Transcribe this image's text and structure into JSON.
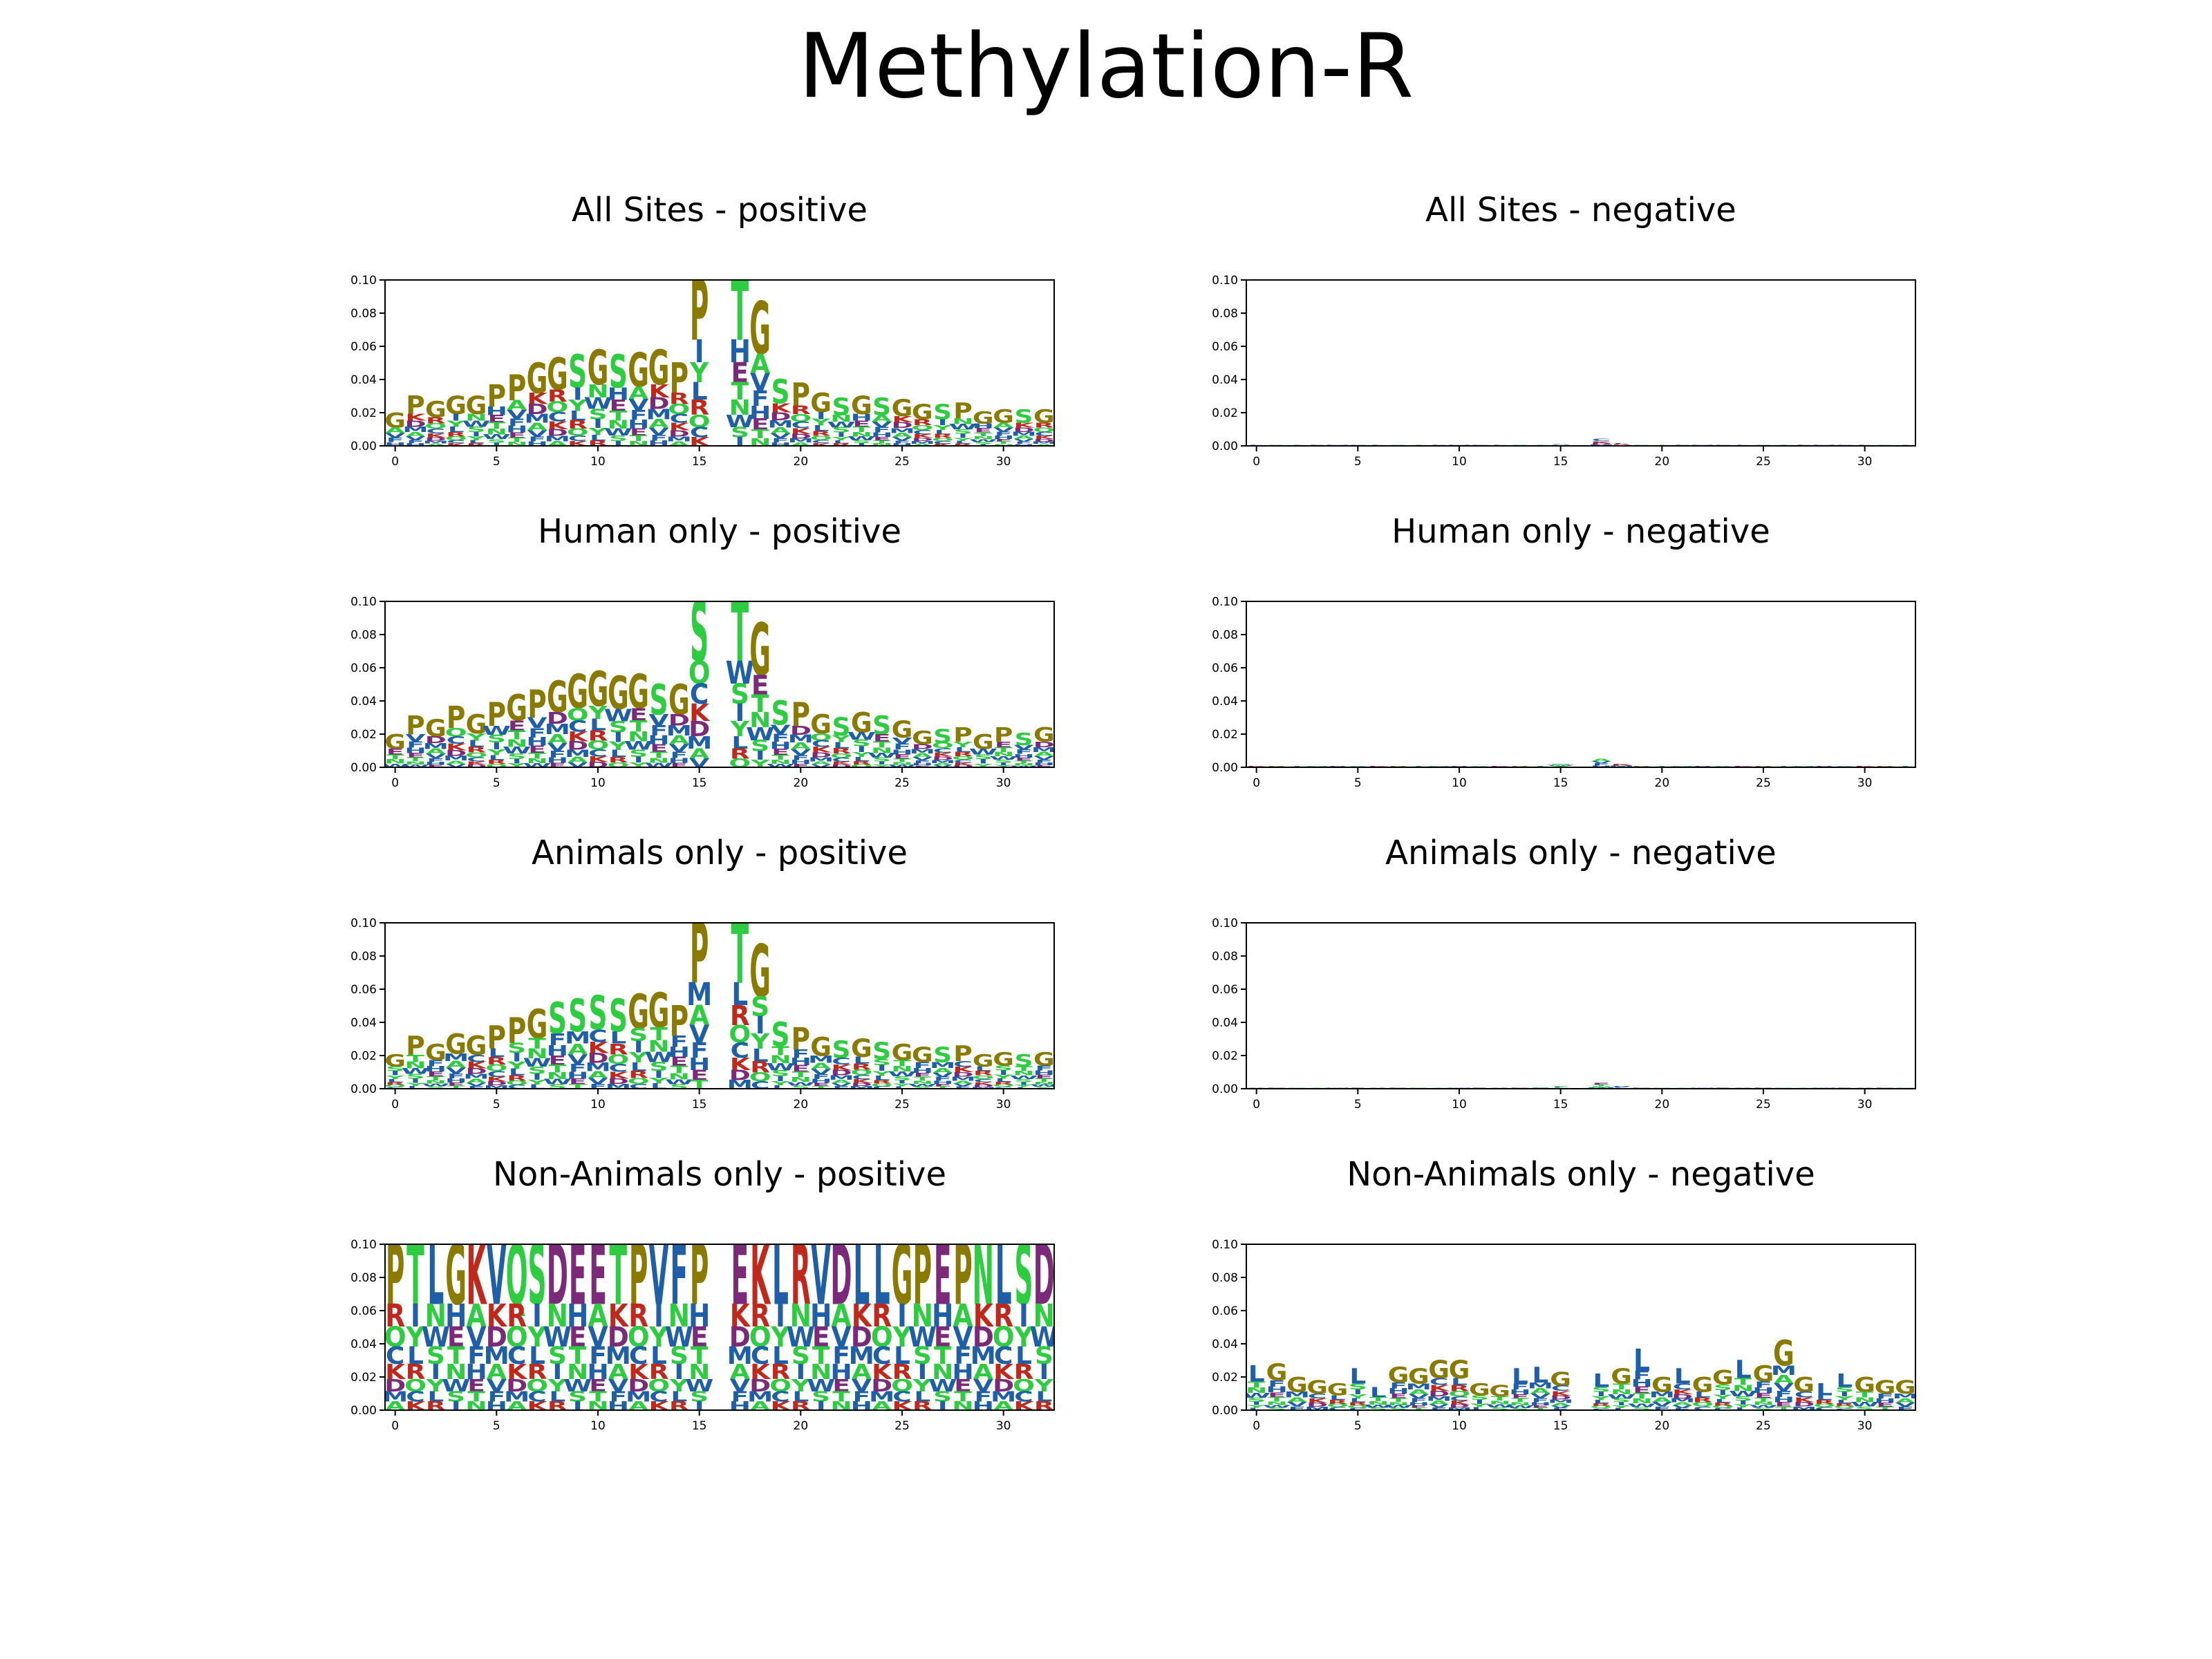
{
  "suptitle": "Methylation-R",
  "colors": {
    "A": "#2ecc40",
    "C": "#1f5fa8",
    "D": "#7a2a78",
    "E": "#7a2a78",
    "F": "#1f5fa8",
    "G": "#8a7a00",
    "H": "#1f5fa8",
    "I": "#1f5fa8",
    "K": "#c0281c",
    "L": "#1f5fa8",
    "M": "#1f5fa8",
    "N": "#2ecc40",
    "P": "#8a7a00",
    "Q": "#2ecc40",
    "R": "#c0281c",
    "S": "#2ecc40",
    "T": "#2ecc40",
    "V": "#1f5fa8",
    "W": "#1f5fa8",
    "Y": "#2ecc40"
  },
  "chart_data": [
    {
      "type": "sequence-logo",
      "title": "All Sites - positive",
      "xlabel": "",
      "ylabel": "",
      "xlim": [
        -0.5,
        32.5
      ],
      "ylim": [
        0,
        0.1
      ],
      "xticks": [
        0,
        5,
        10,
        15,
        20,
        25,
        30
      ],
      "yticks": [
        "0.00",
        "0.02",
        "0.04",
        "0.06",
        "0.08",
        "0.10"
      ],
      "positions": [
        0,
        1,
        2,
        3,
        4,
        5,
        6,
        7,
        8,
        9,
        10,
        11,
        12,
        13,
        14,
        15,
        16,
        17,
        18,
        19,
        20,
        21,
        22,
        23,
        24,
        25,
        26,
        27,
        28,
        29,
        30,
        31,
        32
      ],
      "heights": [
        0.02,
        0.03,
        0.027,
        0.03,
        0.03,
        0.037,
        0.043,
        0.05,
        0.053,
        0.055,
        0.058,
        0.055,
        0.056,
        0.058,
        0.05,
        0.1,
        0,
        0.1,
        0.087,
        0.04,
        0.038,
        0.032,
        0.029,
        0.03,
        0.029,
        0.028,
        0.025,
        0.025,
        0.026,
        0.021,
        0.022,
        0.022,
        0.022
      ],
      "top_letters": [
        "G",
        "P",
        "G",
        "G",
        "G",
        "P",
        "P",
        "G",
        "G",
        "S",
        "G",
        "S",
        "G",
        "G",
        "P",
        "P",
        "",
        "T",
        "G",
        "S",
        "P",
        "G",
        "S",
        "G",
        "S",
        "G",
        "G",
        "S",
        "P",
        "G",
        "G",
        "S",
        "G"
      ]
    },
    {
      "type": "sequence-logo",
      "title": "All Sites - negative",
      "xlabel": "",
      "ylabel": "",
      "xlim": [
        -0.5,
        32.5
      ],
      "ylim": [
        0,
        0.1
      ],
      "xticks": [
        0,
        5,
        10,
        15,
        20,
        25,
        30
      ],
      "yticks": [
        "0.00",
        "0.02",
        "0.04",
        "0.06",
        "0.08",
        "0.10"
      ],
      "positions": [
        0,
        1,
        2,
        3,
        4,
        5,
        6,
        7,
        8,
        9,
        10,
        11,
        12,
        13,
        14,
        15,
        16,
        17,
        18,
        19,
        20,
        21,
        22,
        23,
        24,
        25,
        26,
        27,
        28,
        29,
        30,
        31,
        32
      ],
      "heights": [
        0.0005,
        0.0005,
        0.0005,
        0.0005,
        0.0005,
        0.0005,
        0.0005,
        0.0005,
        0.0005,
        0.0005,
        0.0005,
        0.0005,
        0.0005,
        0.0005,
        0.0005,
        0.0012,
        0,
        0.004,
        0.0015,
        0.0005,
        0.0005,
        0.0005,
        0.0005,
        0.0005,
        0.0005,
        0.0005,
        0.0005,
        0.0005,
        0.0005,
        0.0005,
        0.0005,
        0.0005,
        0.0005
      ],
      "top_letters": []
    },
    {
      "type": "sequence-logo",
      "title": "Human only - positive",
      "xlabel": "",
      "ylabel": "",
      "xlim": [
        -0.5,
        32.5
      ],
      "ylim": [
        0,
        0.1
      ],
      "xticks": [
        0,
        5,
        10,
        15,
        20,
        25,
        30
      ],
      "yticks": [
        "0.00",
        "0.02",
        "0.04",
        "0.06",
        "0.08",
        "0.10"
      ],
      "positions": [
        0,
        1,
        2,
        3,
        4,
        5,
        6,
        7,
        8,
        9,
        10,
        11,
        12,
        13,
        14,
        15,
        16,
        17,
        18,
        19,
        20,
        21,
        22,
        23,
        24,
        25,
        26,
        27,
        28,
        29,
        30,
        31,
        32
      ],
      "heights": [
        0.02,
        0.031,
        0.029,
        0.037,
        0.032,
        0.039,
        0.044,
        0.047,
        0.052,
        0.056,
        0.058,
        0.055,
        0.056,
        0.05,
        0.05,
        0.1,
        0,
        0.1,
        0.087,
        0.04,
        0.039,
        0.032,
        0.03,
        0.033,
        0.031,
        0.028,
        0.022,
        0.023,
        0.024,
        0.02,
        0.024,
        0.021,
        0.024
      ],
      "top_letters": [
        "G",
        "P",
        "G",
        "P",
        "G",
        "P",
        "G",
        "P",
        "G",
        "G",
        "G",
        "G",
        "G",
        "S",
        "G",
        "S",
        "",
        "T",
        "G",
        "S",
        "P",
        "G",
        "S",
        "G",
        "S",
        "G",
        "G",
        "S",
        "P",
        "G",
        "P",
        "S",
        "G"
      ]
    },
    {
      "type": "sequence-logo",
      "title": "Human only - negative",
      "xlabel": "",
      "ylabel": "",
      "xlim": [
        -0.5,
        32.5
      ],
      "ylim": [
        0,
        0.1
      ],
      "xticks": [
        0,
        5,
        10,
        15,
        20,
        25,
        30
      ],
      "yticks": [
        "0.00",
        "0.02",
        "0.04",
        "0.06",
        "0.08",
        "0.10"
      ],
      "positions": [
        0,
        1,
        2,
        3,
        4,
        5,
        6,
        7,
        8,
        9,
        10,
        11,
        12,
        13,
        14,
        15,
        16,
        17,
        18,
        19,
        20,
        21,
        22,
        23,
        24,
        25,
        26,
        27,
        28,
        29,
        30,
        31,
        32
      ],
      "heights": [
        0.0008,
        0.0008,
        0.0008,
        0.0008,
        0.0008,
        0.0008,
        0.0008,
        0.0008,
        0.0008,
        0.0008,
        0.0008,
        0.0008,
        0.0008,
        0.0008,
        0.001,
        0.002,
        0,
        0.005,
        0.002,
        0.0008,
        0.0008,
        0.0008,
        0.0008,
        0.0008,
        0.0008,
        0.0008,
        0.0008,
        0.0008,
        0.0008,
        0.0008,
        0.0008,
        0.0008,
        0.0008
      ],
      "top_letters": []
    },
    {
      "type": "sequence-logo",
      "title": "Animals only - positive",
      "xlabel": "",
      "ylabel": "",
      "xlim": [
        -0.5,
        32.5
      ],
      "ylim": [
        0,
        0.1
      ],
      "xticks": [
        0,
        5,
        10,
        15,
        20,
        25,
        30
      ],
      "yticks": [
        "0.00",
        "0.02",
        "0.04",
        "0.06",
        "0.08",
        "0.10"
      ],
      "positions": [
        0,
        1,
        2,
        3,
        4,
        5,
        6,
        7,
        8,
        9,
        10,
        11,
        12,
        13,
        14,
        15,
        16,
        17,
        18,
        19,
        20,
        21,
        22,
        23,
        24,
        25,
        26,
        27,
        28,
        29,
        30,
        31,
        32
      ],
      "heights": [
        0.021,
        0.032,
        0.027,
        0.033,
        0.032,
        0.038,
        0.043,
        0.048,
        0.052,
        0.054,
        0.056,
        0.054,
        0.057,
        0.058,
        0.05,
        0.1,
        0,
        0.1,
        0.087,
        0.04,
        0.037,
        0.031,
        0.029,
        0.03,
        0.028,
        0.027,
        0.025,
        0.025,
        0.026,
        0.021,
        0.022,
        0.021,
        0.022
      ],
      "top_letters": [
        "G",
        "P",
        "G",
        "G",
        "G",
        "P",
        "P",
        "G",
        "S",
        "S",
        "S",
        "S",
        "G",
        "G",
        "P",
        "P",
        "",
        "T",
        "G",
        "S",
        "P",
        "G",
        "S",
        "G",
        "S",
        "G",
        "G",
        "S",
        "P",
        "G",
        "G",
        "S",
        "G"
      ]
    },
    {
      "type": "sequence-logo",
      "title": "Animals only - negative",
      "xlabel": "",
      "ylabel": "",
      "xlim": [
        -0.5,
        32.5
      ],
      "ylim": [
        0,
        0.1
      ],
      "xticks": [
        0,
        5,
        10,
        15,
        20,
        25,
        30
      ],
      "yticks": [
        "0.00",
        "0.02",
        "0.04",
        "0.06",
        "0.08",
        "0.10"
      ],
      "positions": [
        0,
        1,
        2,
        3,
        4,
        5,
        6,
        7,
        8,
        9,
        10,
        11,
        12,
        13,
        14,
        15,
        16,
        17,
        18,
        19,
        20,
        21,
        22,
        23,
        24,
        25,
        26,
        27,
        28,
        29,
        30,
        31,
        32
      ],
      "heights": [
        0.0005,
        0.0005,
        0.0005,
        0.0005,
        0.0005,
        0.0005,
        0.0005,
        0.0005,
        0.0005,
        0.0005,
        0.0005,
        0.0005,
        0.0005,
        0.0005,
        0.0008,
        0.0015,
        0,
        0.0035,
        0.0015,
        0.0005,
        0.0005,
        0.0005,
        0.0005,
        0.0005,
        0.0005,
        0.0005,
        0.0005,
        0.0005,
        0.0005,
        0.0005,
        0.0005,
        0.0005,
        0.0005
      ],
      "top_letters": []
    },
    {
      "type": "sequence-logo",
      "title": "Non-Animals only - positive",
      "xlabel": "",
      "ylabel": "",
      "xlim": [
        -0.5,
        32.5
      ],
      "ylim": [
        0,
        0.1
      ],
      "xticks": [
        0,
        5,
        10,
        15,
        20,
        25,
        30
      ],
      "yticks": [
        "0.00",
        "0.02",
        "0.04",
        "0.06",
        "0.08",
        "0.10"
      ],
      "positions": [
        0,
        1,
        2,
        3,
        4,
        5,
        6,
        7,
        8,
        9,
        10,
        11,
        12,
        13,
        14,
        15,
        16,
        17,
        18,
        19,
        20,
        21,
        22,
        23,
        24,
        25,
        26,
        27,
        28,
        29,
        30,
        31,
        32
      ],
      "heights": [
        0.1,
        0.1,
        0.1,
        0.1,
        0.1,
        0.1,
        0.1,
        0.1,
        0.1,
        0.1,
        0.1,
        0.1,
        0.1,
        0.1,
        0.1,
        0.1,
        0,
        0.1,
        0.1,
        0.1,
        0.1,
        0.1,
        0.1,
        0.1,
        0.1,
        0.1,
        0.1,
        0.1,
        0.1,
        0.1,
        0.1,
        0.1,
        0.1
      ],
      "top_letters": [
        "P",
        "T",
        "L",
        "G",
        "K",
        "V",
        "Q",
        "S",
        "D",
        "E",
        "E",
        "T",
        "P",
        "V",
        "F",
        "P",
        "",
        "E",
        "K",
        "L",
        "R",
        "V",
        "D",
        "L",
        "L",
        "G",
        "P",
        "E",
        "P",
        "N",
        "L",
        "S",
        "D"
      ]
    },
    {
      "type": "sequence-logo",
      "title": "Non-Animals only - negative",
      "xlabel": "",
      "ylabel": "",
      "xlim": [
        -0.5,
        32.5
      ],
      "ylim": [
        0,
        0.1
      ],
      "xticks": [
        0,
        5,
        10,
        15,
        20,
        25,
        30
      ],
      "yticks": [
        "0.00",
        "0.02",
        "0.04",
        "0.06",
        "0.08",
        "0.10"
      ],
      "positions": [
        0,
        1,
        2,
        3,
        4,
        5,
        6,
        7,
        8,
        9,
        10,
        11,
        12,
        13,
        14,
        15,
        16,
        17,
        18,
        19,
        20,
        21,
        22,
        23,
        24,
        25,
        26,
        27,
        28,
        29,
        30,
        31,
        32
      ],
      "heights": [
        0.027,
        0.028,
        0.02,
        0.018,
        0.016,
        0.025,
        0.014,
        0.026,
        0.025,
        0.03,
        0.03,
        0.016,
        0.015,
        0.025,
        0.026,
        0.023,
        0,
        0.022,
        0.025,
        0.037,
        0.02,
        0.025,
        0.02,
        0.024,
        0.03,
        0.027,
        0.042,
        0.02,
        0.016,
        0.022,
        0.02,
        0.018,
        0.018
      ],
      "top_letters": [
        "L",
        "G",
        "G",
        "G",
        "G",
        "L",
        "L",
        "G",
        "G",
        "G",
        "G",
        "G",
        "G",
        "L",
        "L",
        "G",
        "",
        "L",
        "G",
        "L",
        "G",
        "L",
        "G",
        "G",
        "L",
        "G",
        "G",
        "G",
        "L",
        "L",
        "G",
        "G",
        "G"
      ]
    }
  ]
}
